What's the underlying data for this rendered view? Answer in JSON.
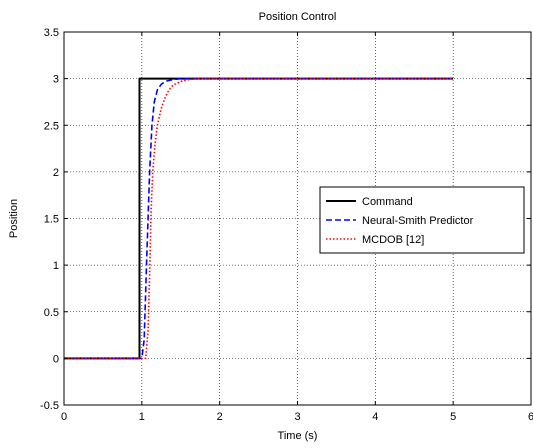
{
  "chart_data": {
    "type": "line",
    "title": "Position Control",
    "xlabel": "Time (s)",
    "ylabel": "Position",
    "xlim": [
      0,
      6
    ],
    "ylim": [
      -0.5,
      3.5
    ],
    "xticks": [
      0,
      1,
      2,
      3,
      4,
      5,
      6
    ],
    "xtick_labels": [
      "0",
      "1",
      "2",
      "3",
      "4",
      "5",
      "6"
    ],
    "yticks": [
      -0.5,
      0,
      0.5,
      1,
      1.5,
      2,
      2.5,
      3,
      3.5
    ],
    "ytick_labels": [
      "-0.5",
      "0",
      "0.5",
      "1",
      "1.5",
      "2",
      "2.5",
      "3",
      "3.5"
    ],
    "grid": true,
    "legend_position": "right",
    "series": [
      {
        "name": "Command",
        "color": "#000000",
        "style": "solid",
        "x": [
          0,
          0.97,
          0.97,
          5
        ],
        "y": [
          0,
          0,
          3,
          3
        ]
      },
      {
        "name": "Neural-Smith Predictor",
        "color": "#0000ff",
        "style": "dashed",
        "x": [
          0,
          1.0,
          1.03,
          1.06,
          1.1,
          1.13,
          1.16,
          1.2,
          1.25,
          1.3,
          1.4,
          1.5,
          1.7,
          2.0,
          2.3,
          5
        ],
        "y": [
          0,
          0,
          0.2,
          1.0,
          2.0,
          2.5,
          2.75,
          2.88,
          2.94,
          2.97,
          2.99,
          3.0,
          3.0,
          3.0,
          3.0,
          3.0
        ]
      },
      {
        "name": "MCDOB [12]",
        "color": "#ff0000",
        "style": "dotted",
        "x": [
          0,
          1.05,
          1.08,
          1.1,
          1.12,
          1.14,
          1.17,
          1.2,
          1.25,
          1.3,
          1.35,
          1.4,
          1.5,
          1.6,
          1.75,
          2.0,
          2.3,
          5
        ],
        "y": [
          0,
          0,
          0.3,
          0.9,
          1.6,
          2.0,
          2.3,
          2.5,
          2.68,
          2.8,
          2.88,
          2.93,
          2.97,
          2.99,
          3.0,
          3.0,
          3.0,
          3.0
        ]
      }
    ]
  }
}
